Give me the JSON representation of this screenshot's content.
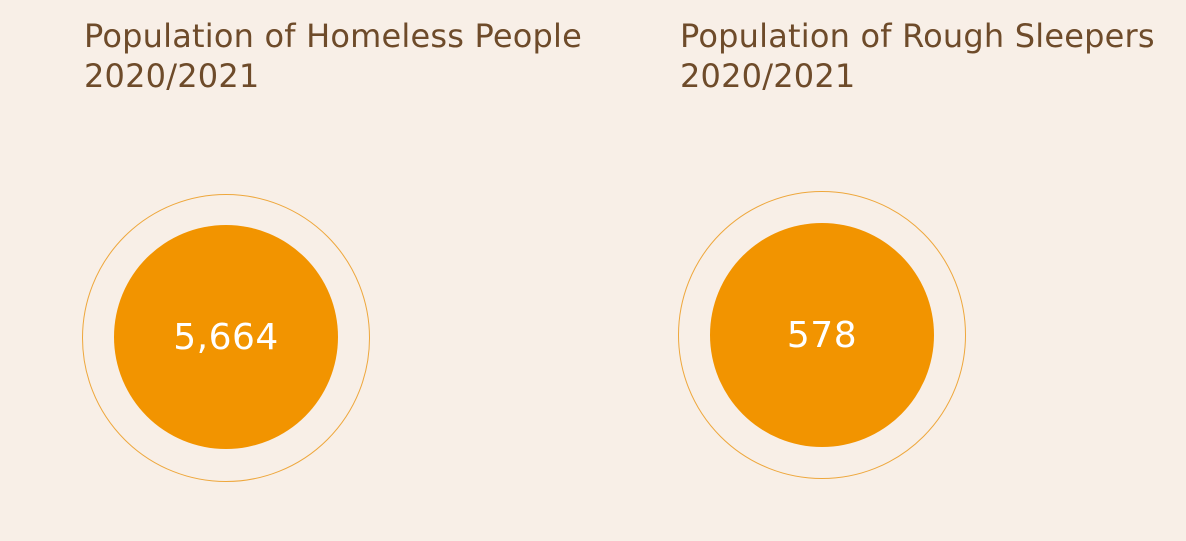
{
  "stats": [
    {
      "title_line1": "Population of Homeless People",
      "title_line2": "2020/2021",
      "value": "5,664"
    },
    {
      "title_line1": "Population of Rough Sleepers",
      "title_line2": "2020/2021",
      "value": "578"
    }
  ],
  "colors": {
    "background": "#f8efe7",
    "accent": "#f29400",
    "ring": "#eea73c",
    "title": "#6e4b2a",
    "value_text": "#ffffff"
  }
}
